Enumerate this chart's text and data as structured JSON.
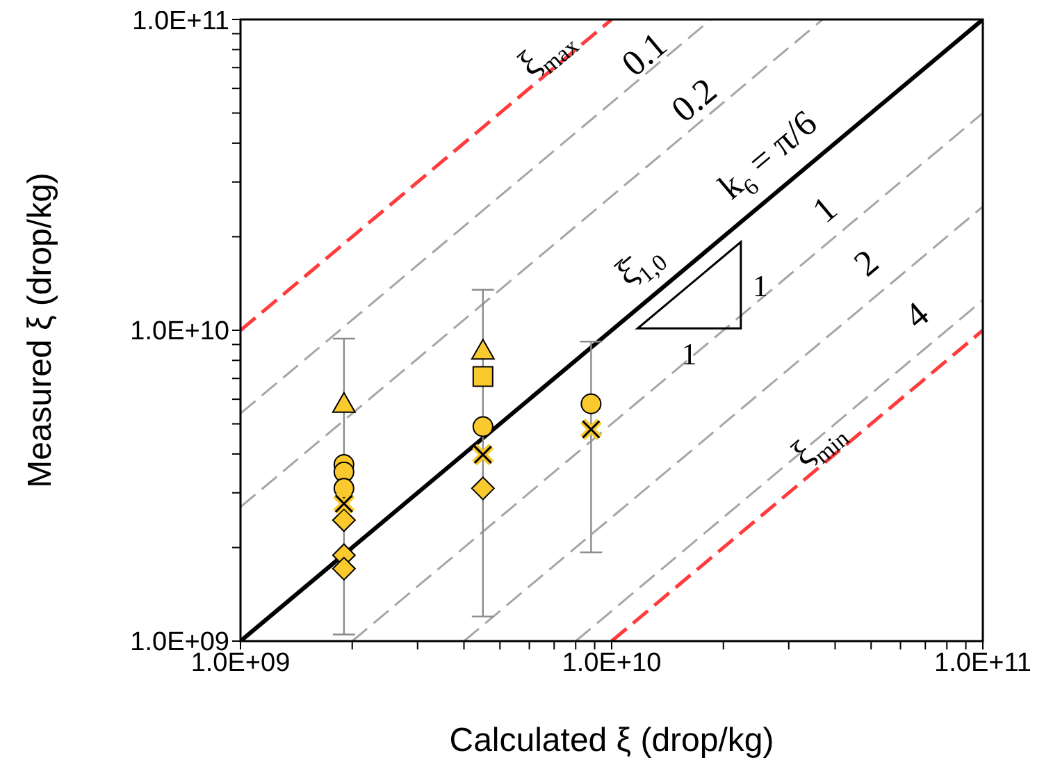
{
  "chart_data": {
    "type": "scatter",
    "xlabel": "Calculated ξ (drop/kg)",
    "ylabel": "Measured ξ (drop/kg)",
    "log": "xy",
    "xlim": [
      1000000000.0,
      100000000000.0
    ],
    "ylim": [
      1000000000.0,
      100000000000.0
    ],
    "xticks": [
      {
        "value": 1000000000.0,
        "label": "1.0E+09"
      },
      {
        "value": 2000000000.0,
        "label": null
      },
      {
        "value": 3000000000.0,
        "label": null
      },
      {
        "value": 4000000000.0,
        "label": null
      },
      {
        "value": 5000000000.0,
        "label": null
      },
      {
        "value": 6000000000.0,
        "label": null
      },
      {
        "value": 7000000000.0,
        "label": null
      },
      {
        "value": 8000000000.0,
        "label": null
      },
      {
        "value": 9000000000.0,
        "label": null
      },
      {
        "value": 10000000000.0,
        "label": "1.0E+10"
      },
      {
        "value": 20000000000.0,
        "label": null
      },
      {
        "value": 30000000000.0,
        "label": null
      },
      {
        "value": 40000000000.0,
        "label": null
      },
      {
        "value": 50000000000.0,
        "label": null
      },
      {
        "value": 60000000000.0,
        "label": null
      },
      {
        "value": 70000000000.0,
        "label": null
      },
      {
        "value": 80000000000.0,
        "label": null
      },
      {
        "value": 90000000000.0,
        "label": null
      },
      {
        "value": 100000000000.0,
        "label": "1.0E+11"
      }
    ],
    "yticks": [
      {
        "value": 1000000000.0,
        "label": "1.0E+09"
      },
      {
        "value": 2000000000.0,
        "label": null
      },
      {
        "value": 3000000000.0,
        "label": null
      },
      {
        "value": 4000000000.0,
        "label": null
      },
      {
        "value": 5000000000.0,
        "label": null
      },
      {
        "value": 6000000000.0,
        "label": null
      },
      {
        "value": 7000000000.0,
        "label": null
      },
      {
        "value": 8000000000.0,
        "label": null
      },
      {
        "value": 9000000000.0,
        "label": null
      },
      {
        "value": 10000000000.0,
        "label": "1.0E+10"
      },
      {
        "value": 20000000000.0,
        "label": null
      },
      {
        "value": 30000000000.0,
        "label": null
      },
      {
        "value": 40000000000.0,
        "label": null
      },
      {
        "value": 50000000000.0,
        "label": null
      },
      {
        "value": 60000000000.0,
        "label": null
      },
      {
        "value": 70000000000.0,
        "label": null
      },
      {
        "value": 80000000000.0,
        "label": null
      },
      {
        "value": 90000000000.0,
        "label": null
      },
      {
        "value": 100000000000.0,
        "label": "1.0E+11"
      }
    ],
    "series": [
      {
        "type": "line",
        "color": "#ff3b3b",
        "line_style": "dashed",
        "x": [
          1000000000.0,
          10000000000.0
        ],
        "values": [
          10000000000.0,
          100000000000.0
        ]
      },
      {
        "type": "line",
        "color": "#ff3b3b",
        "line_style": "dashed",
        "x": [
          10000000000.0,
          100000000000.0
        ],
        "values": [
          1000000000.0,
          10000000000.0
        ]
      },
      {
        "type": "line",
        "color": "#a6a6a6",
        "line_style": "dashed",
        "x": [
          1000000000.0,
          18500000000.0
        ],
        "values": [
          5400000000.0,
          100000000000.0
        ]
      },
      {
        "type": "line",
        "color": "#a6a6a6",
        "line_style": "dashed",
        "x": [
          1000000000.0,
          37000000000.0
        ],
        "values": [
          2700000000.0,
          100000000000.0
        ]
      },
      {
        "type": "line",
        "color": "#a6a6a6",
        "line_style": "dashed",
        "x": [
          2000000000.0,
          100000000000.0
        ],
        "values": [
          1000000000.0,
          50000000000.0
        ]
      },
      {
        "type": "line",
        "color": "#a6a6a6",
        "line_style": "dashed",
        "x": [
          4000000000.0,
          100000000000.0
        ],
        "values": [
          1000000000.0,
          25000000000.0
        ]
      },
      {
        "type": "line",
        "color": "#a6a6a6",
        "line_style": "dashed",
        "x": [
          8000000000.0,
          100000000000.0
        ],
        "values": [
          1000000000.0,
          12500000000.0
        ]
      },
      {
        "type": "line",
        "color": "#000000",
        "line_style": "solid",
        "x": [
          1000000000.0,
          100000000000.0
        ],
        "values": [
          1000000000.0,
          100000000000.0
        ]
      },
      {
        "color": "#fac92e",
        "marker": "triangle",
        "x": [
          1900000000.0,
          4500000000.0
        ],
        "values": [
          5800000000.0,
          8600000000.0
        ],
        "errors": [
          [
            1050000000.0,
            9400000000.0
          ],
          [
            1200000000.0,
            13500000000.0
          ]
        ]
      },
      {
        "color": "#fac92e",
        "marker": "circle",
        "x": [
          1900000000.0,
          1900000000.0,
          1900000000.0,
          4500000000.0,
          8800000000.0
        ],
        "values": [
          3700000000.0,
          3500000000.0,
          3100000000.0,
          4900000000.0,
          5800000000.0
        ],
        "errors": [
          null,
          null,
          null,
          null,
          [
            1930000000.0,
            9200000000.0
          ]
        ]
      },
      {
        "color": "#fac92e",
        "marker": "diamond",
        "x": [
          1900000000.0,
          1900000000.0,
          1900000000.0,
          4500000000.0
        ],
        "values": [
          2450000000.0,
          1890000000.0,
          1710000000.0,
          3100000000.0
        ]
      },
      {
        "color": "#fac92e",
        "marker": "square",
        "x": [
          4500000000.0
        ],
        "values": [
          7100000000.0
        ]
      },
      {
        "color": "#fac92e",
        "marker": "cross",
        "x": [
          1900000000.0,
          4500000000.0,
          8800000000.0
        ],
        "values": [
          2770000000.0,
          3980000000.0,
          4800000000.0
        ]
      }
    ],
    "annotations": [
      "ξ$_{max}$",
      "0.1",
      "0.2",
      "k$_{6}$ = π/6",
      "1",
      "ξ̄$_{1,0}$",
      "2",
      "4",
      "ξ$_{min}$",
      "1",
      "1"
    ]
  }
}
